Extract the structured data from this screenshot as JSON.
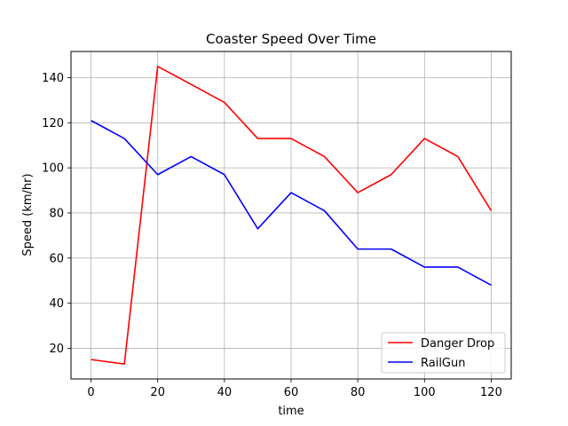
{
  "chart_data": {
    "type": "line",
    "title": "Coaster Speed Over Time",
    "xlabel": "time",
    "ylabel": "Speed (km/hr)",
    "x": [
      0,
      10,
      20,
      30,
      40,
      50,
      60,
      70,
      80,
      90,
      100,
      110,
      120
    ],
    "series": [
      {
        "name": "Danger Drop",
        "color": "#ff0000",
        "values": [
          15,
          13,
          145,
          137,
          129,
          113,
          113,
          105,
          89,
          97,
          113,
          105,
          81
        ]
      },
      {
        "name": "RailGun",
        "color": "#0000ff",
        "values": [
          121,
          113,
          97,
          105,
          97,
          73,
          89,
          81,
          64,
          64,
          56,
          56,
          48
        ]
      }
    ],
    "xlim": [
      -6,
      126
    ],
    "ylim": [
      6.4,
      151.6
    ],
    "xticks": [
      0,
      20,
      40,
      60,
      80,
      100,
      120
    ],
    "yticks": [
      20,
      40,
      60,
      80,
      100,
      120,
      140
    ],
    "grid": true,
    "legend_position": "lower-right"
  }
}
